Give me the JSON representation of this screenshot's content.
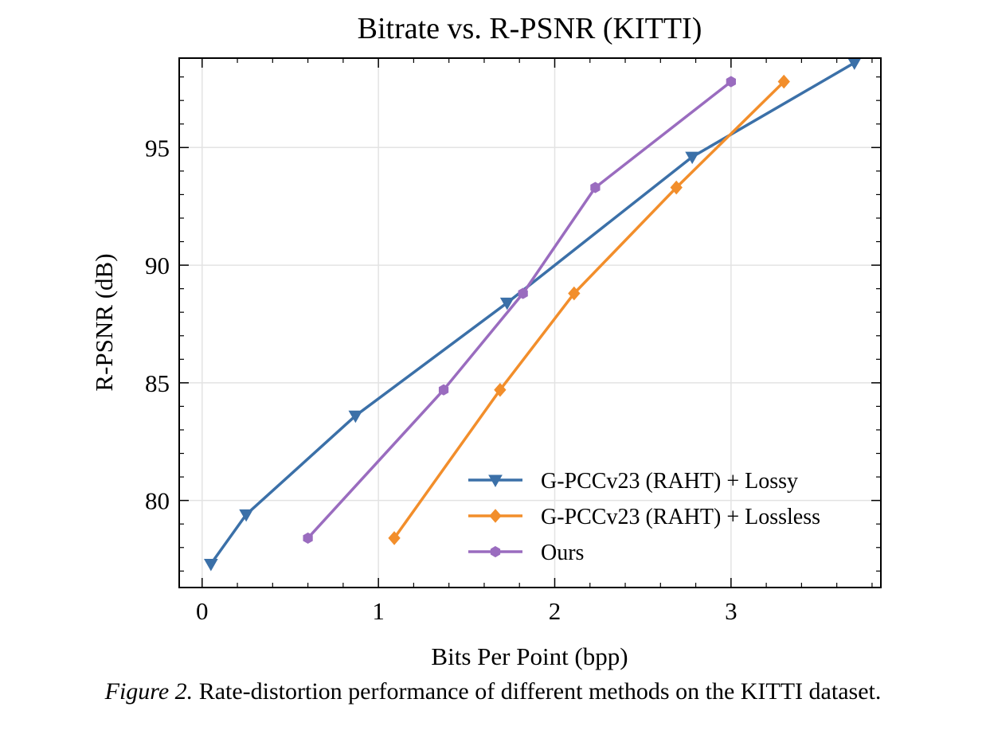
{
  "chart_data": {
    "type": "line",
    "title": "Bitrate vs. R-PSNR (KITTI)",
    "xlabel": "Bits Per Point (bpp)",
    "ylabel": "R-PSNR (dB)",
    "xlim": [
      -0.13,
      3.85
    ],
    "ylim": [
      76.3,
      98.8
    ],
    "xticks": [
      0,
      1,
      2,
      3
    ],
    "yticks": [
      80,
      85,
      90,
      95
    ],
    "xticklabels": [
      "0",
      "1",
      "2",
      "3"
    ],
    "yticklabels": [
      "80",
      "85",
      "90",
      "95"
    ],
    "x_minor_step": 0.2,
    "y_minor_step": 1,
    "grid": true,
    "legend_position": "lower-right",
    "series": [
      {
        "name": "G-PCCv23 (RAHT) + Lossy",
        "color": "#3b70a8",
        "marker": "triangle-down",
        "x": [
          0.05,
          0.25,
          0.87,
          1.73,
          2.78,
          3.7
        ],
        "y": [
          77.3,
          79.4,
          83.6,
          88.4,
          94.6,
          98.6
        ]
      },
      {
        "name": "G-PCCv23 (RAHT) + Lossless",
        "color": "#f28e2b",
        "marker": "diamond",
        "x": [
          1.09,
          1.69,
          2.11,
          2.69,
          3.3
        ],
        "y": [
          78.4,
          84.7,
          88.8,
          93.3,
          97.8
        ]
      },
      {
        "name": "Ours",
        "color": "#9a6cbf",
        "marker": "hexagon",
        "x": [
          0.6,
          1.37,
          1.82,
          2.23,
          3.0
        ],
        "y": [
          78.4,
          84.7,
          88.8,
          93.3,
          97.8
        ]
      }
    ]
  },
  "caption": {
    "label": "Figure 2.",
    "text": " Rate-distortion performance of different methods on the KITTI dataset."
  }
}
